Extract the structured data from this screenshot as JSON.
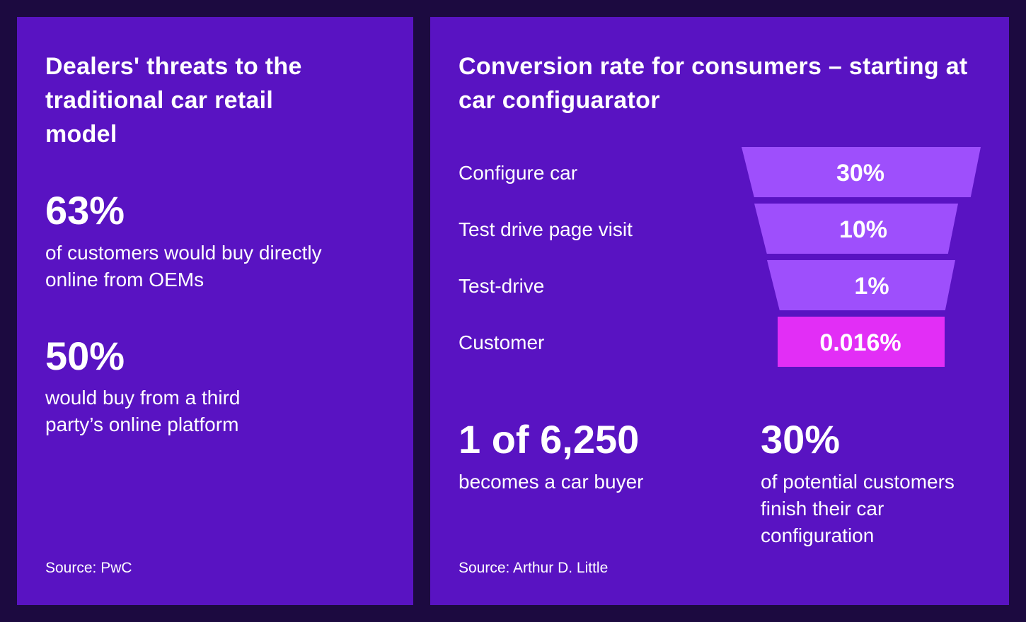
{
  "left": {
    "title": "Dealers' threats to the traditional car retail model",
    "stat1": {
      "value": "63%",
      "text": "of customers would buy directly online from OEMs"
    },
    "stat2": {
      "value": "50%",
      "text": "would buy from a third party’s online platform"
    },
    "source": "Source: PwC"
  },
  "right": {
    "title": "Conversion rate for consumers – starting at car configuarator",
    "stat1": {
      "value": "1 of 6,250",
      "text": "becomes a car buyer"
    },
    "stat2": {
      "value": "30%",
      "text": "of potential customers finish their car configuration"
    },
    "source": "Source: Arthur D. Little"
  },
  "colors": {
    "background": "#1c0a40",
    "panel": "#5913c2",
    "funnel_stage": "#9e4ffc",
    "funnel_final": "#e22ef6",
    "text": "#ffffff"
  },
  "chart_data": {
    "type": "funnel",
    "title": "Conversion rate for consumers – starting at car configuarator",
    "categories": [
      "Configure car",
      "Test drive page visit",
      "Test-drive",
      "Customer"
    ],
    "values": [
      30,
      10,
      1,
      0.016
    ],
    "labels": [
      "30%",
      "10%",
      "1%",
      "0.016%"
    ],
    "unit": "%"
  }
}
